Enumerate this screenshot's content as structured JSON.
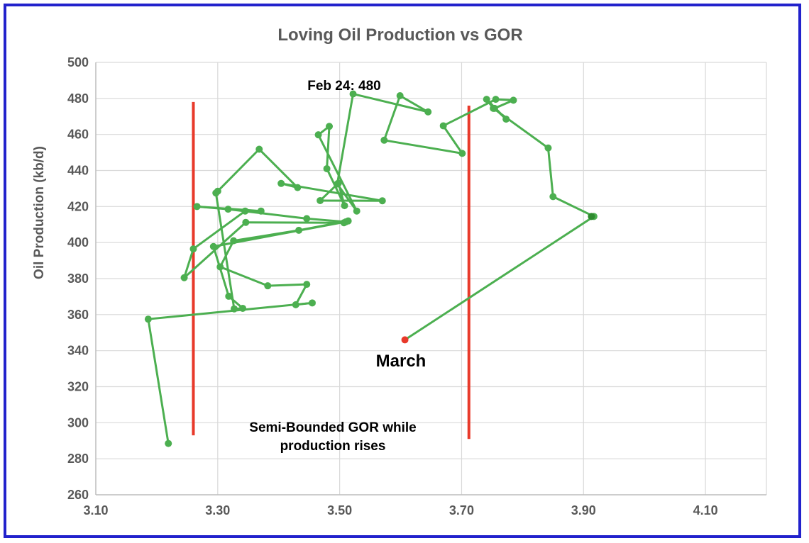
{
  "chart_data": {
    "type": "scatter",
    "title": "Loving Oil Production vs GOR",
    "xlabel": "",
    "ylabel": "Oil Production (kb/d)",
    "xlim": [
      3.1,
      4.2
    ],
    "ylim": [
      260,
      500
    ],
    "x_ticks": [
      3.1,
      3.3,
      3.5,
      3.7,
      3.9,
      4.1
    ],
    "x_tick_labels": [
      "3.10",
      "3.30",
      "3.50",
      "3.70",
      "3.90",
      "4.10"
    ],
    "y_ticks": [
      260,
      280,
      300,
      320,
      340,
      360,
      380,
      400,
      420,
      440,
      460,
      480,
      500
    ],
    "y_tick_labels": [
      "260",
      "280",
      "300",
      "320",
      "340",
      "360",
      "380",
      "400",
      "420",
      "440",
      "460",
      "480",
      "500"
    ],
    "grid": true,
    "colors": {
      "series": "#4caf50",
      "last_point": "#e8392a",
      "bounds": "#e8392a",
      "grid": "#d9d9d9",
      "frame": "#2222cc"
    },
    "series": [
      {
        "points": [
          [
            3.219,
            288.5
          ],
          [
            3.186,
            357.5
          ],
          [
            3.455,
            366.5
          ],
          [
            3.428,
            365.5
          ],
          [
            3.446,
            376.8
          ],
          [
            3.382,
            376.0
          ],
          [
            3.304,
            386.5
          ],
          [
            3.326,
            401.0
          ],
          [
            3.433,
            406.8
          ],
          [
            3.514,
            412.0
          ],
          [
            3.507,
            411.0
          ],
          [
            3.346,
            411.2
          ],
          [
            3.245,
            380.5
          ],
          [
            3.26,
            396.5
          ],
          [
            3.345,
            417.5
          ],
          [
            3.371,
            417.5
          ],
          [
            3.266,
            420.0
          ],
          [
            3.317,
            418.5
          ],
          [
            3.446,
            413.3
          ],
          [
            3.51,
            411.5
          ],
          [
            3.293,
            397.8
          ],
          [
            3.318,
            370.2
          ],
          [
            3.341,
            363.5
          ],
          [
            3.327,
            363.2
          ],
          [
            3.297,
            427.5
          ],
          [
            3.3,
            428.5
          ],
          [
            3.368,
            451.8
          ],
          [
            3.431,
            430.5
          ],
          [
            3.404,
            432.8
          ],
          [
            3.57,
            423.2
          ],
          [
            3.468,
            423.3
          ],
          [
            3.498,
            433.0
          ],
          [
            3.508,
            420.5
          ],
          [
            3.479,
            441.0
          ],
          [
            3.483,
            464.5
          ],
          [
            3.465,
            459.8
          ],
          [
            3.528,
            417.5
          ],
          [
            3.496,
            432.5
          ],
          [
            3.522,
            482.5
          ],
          [
            3.645,
            472.5
          ],
          [
            3.599,
            481.5
          ],
          [
            3.573,
            456.8
          ],
          [
            3.701,
            449.5
          ],
          [
            3.67,
            464.8
          ],
          [
            3.756,
            479.5
          ],
          [
            3.785,
            479.0
          ],
          [
            3.754,
            474.5
          ],
          [
            3.773,
            468.5
          ],
          [
            3.741,
            479.5
          ],
          [
            3.752,
            474.5
          ],
          [
            3.842,
            452.5
          ],
          [
            3.85,
            425.5
          ],
          [
            3.917,
            414.5
          ],
          [
            3.607,
            346.0
          ]
        ]
      }
    ],
    "special_point": [
      3.913,
      414.5
    ],
    "vertical_bounds": [
      {
        "x": 3.26,
        "y_from": 293,
        "y_to": 478
      },
      {
        "x": 3.712,
        "y_from": 291,
        "y_to": 476
      }
    ],
    "annotations": {
      "peak": "Feb 24: 480",
      "last": "March",
      "note_line1": "Semi-Bounded GOR while",
      "note_line2": "production rises"
    }
  }
}
